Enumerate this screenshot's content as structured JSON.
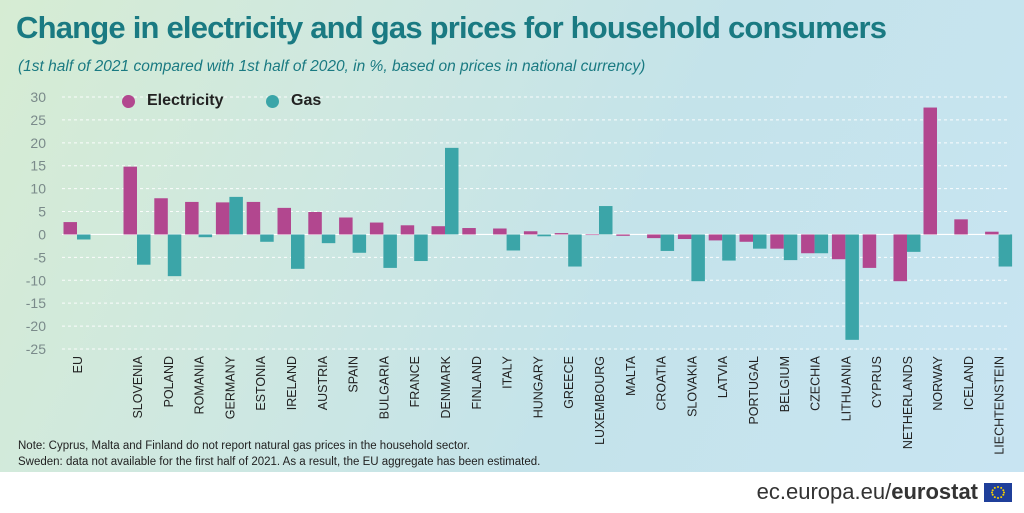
{
  "colors": {
    "electricity": "#b2478f",
    "gas": "#3ba5a8",
    "title": "#1a7a82",
    "axis_text": "#555555"
  },
  "header": {
    "title": "Change in electricity and gas prices for household consumers",
    "subtitle": "(1st half of 2021 compared with 1st half of 2020, in %, based on prices in national currency)"
  },
  "legend": {
    "electricity": "Electricity",
    "gas": "Gas"
  },
  "chart_data": {
    "type": "bar",
    "title": "Change in electricity and gas prices for household consumers",
    "subtitle": "(1st half of 2021 compared with 1st half of 2020, in %, based on prices in national currency)",
    "categories": [
      "EU",
      "SLOVENIA",
      "POLAND",
      "ROMANIA",
      "GERMANY",
      "ESTONIA",
      "IRELAND",
      "AUSTRIA",
      "SPAIN",
      "BULGARIA",
      "FRANCE",
      "DENMARK",
      "FINLAND",
      "ITALY",
      "HUNGARY",
      "GREECE",
      "LUXEMBOURG",
      "MALTA",
      "CROATIA",
      "SLOVAKIA",
      "LATVIA",
      "PORTUGAL",
      "BELGIUM",
      "CZECHIA",
      "LITHUANIA",
      "CYPRUS",
      "NETHERLANDS",
      "NORWAY",
      "ICELAND",
      "LIECHTENSTEIN"
    ],
    "series": [
      {
        "name": "Electricity",
        "values": [
          2.7,
          14.8,
          7.9,
          7.1,
          7.0,
          7.1,
          5.8,
          4.9,
          3.7,
          2.6,
          2.0,
          1.8,
          1.4,
          1.3,
          0.7,
          0.3,
          0.0,
          -0.3,
          -0.8,
          -1.0,
          -1.3,
          -1.6,
          -3.1,
          -4.1,
          -5.4,
          -7.3,
          -10.2,
          27.7,
          3.3,
          0.6
        ]
      },
      {
        "name": "Gas",
        "values": [
          -1.1,
          -6.6,
          -9.1,
          -0.6,
          8.2,
          -1.6,
          -7.5,
          -1.9,
          -4.0,
          -7.3,
          -5.8,
          18.9,
          null,
          -3.5,
          -0.4,
          -7.0,
          6.2,
          null,
          -3.6,
          -10.2,
          -5.7,
          -3.1,
          -5.6,
          -4.1,
          -23.0,
          null,
          -3.8,
          null,
          null,
          -7.0
        ]
      }
    ],
    "xlabel": "",
    "ylabel": "",
    "ylim": [
      -25,
      30
    ],
    "yticks": [
      "30",
      "25",
      "20",
      "15",
      "10",
      "5",
      "0",
      "-5",
      "-10",
      "-15",
      "-20",
      "-25"
    ],
    "grid": true,
    "legend_position": "top-left"
  },
  "notes": {
    "line1": "Note: Cyprus, Malta and Finland do not report natural gas prices in the household sector.",
    "line2": "Sweden: data not available for the first half of 2021. As a result, the EU aggregate has been estimated."
  },
  "footer": {
    "site": "ec.europa.eu/",
    "brand": "eurostat",
    "flag_icon": "eu-flag-icon"
  }
}
